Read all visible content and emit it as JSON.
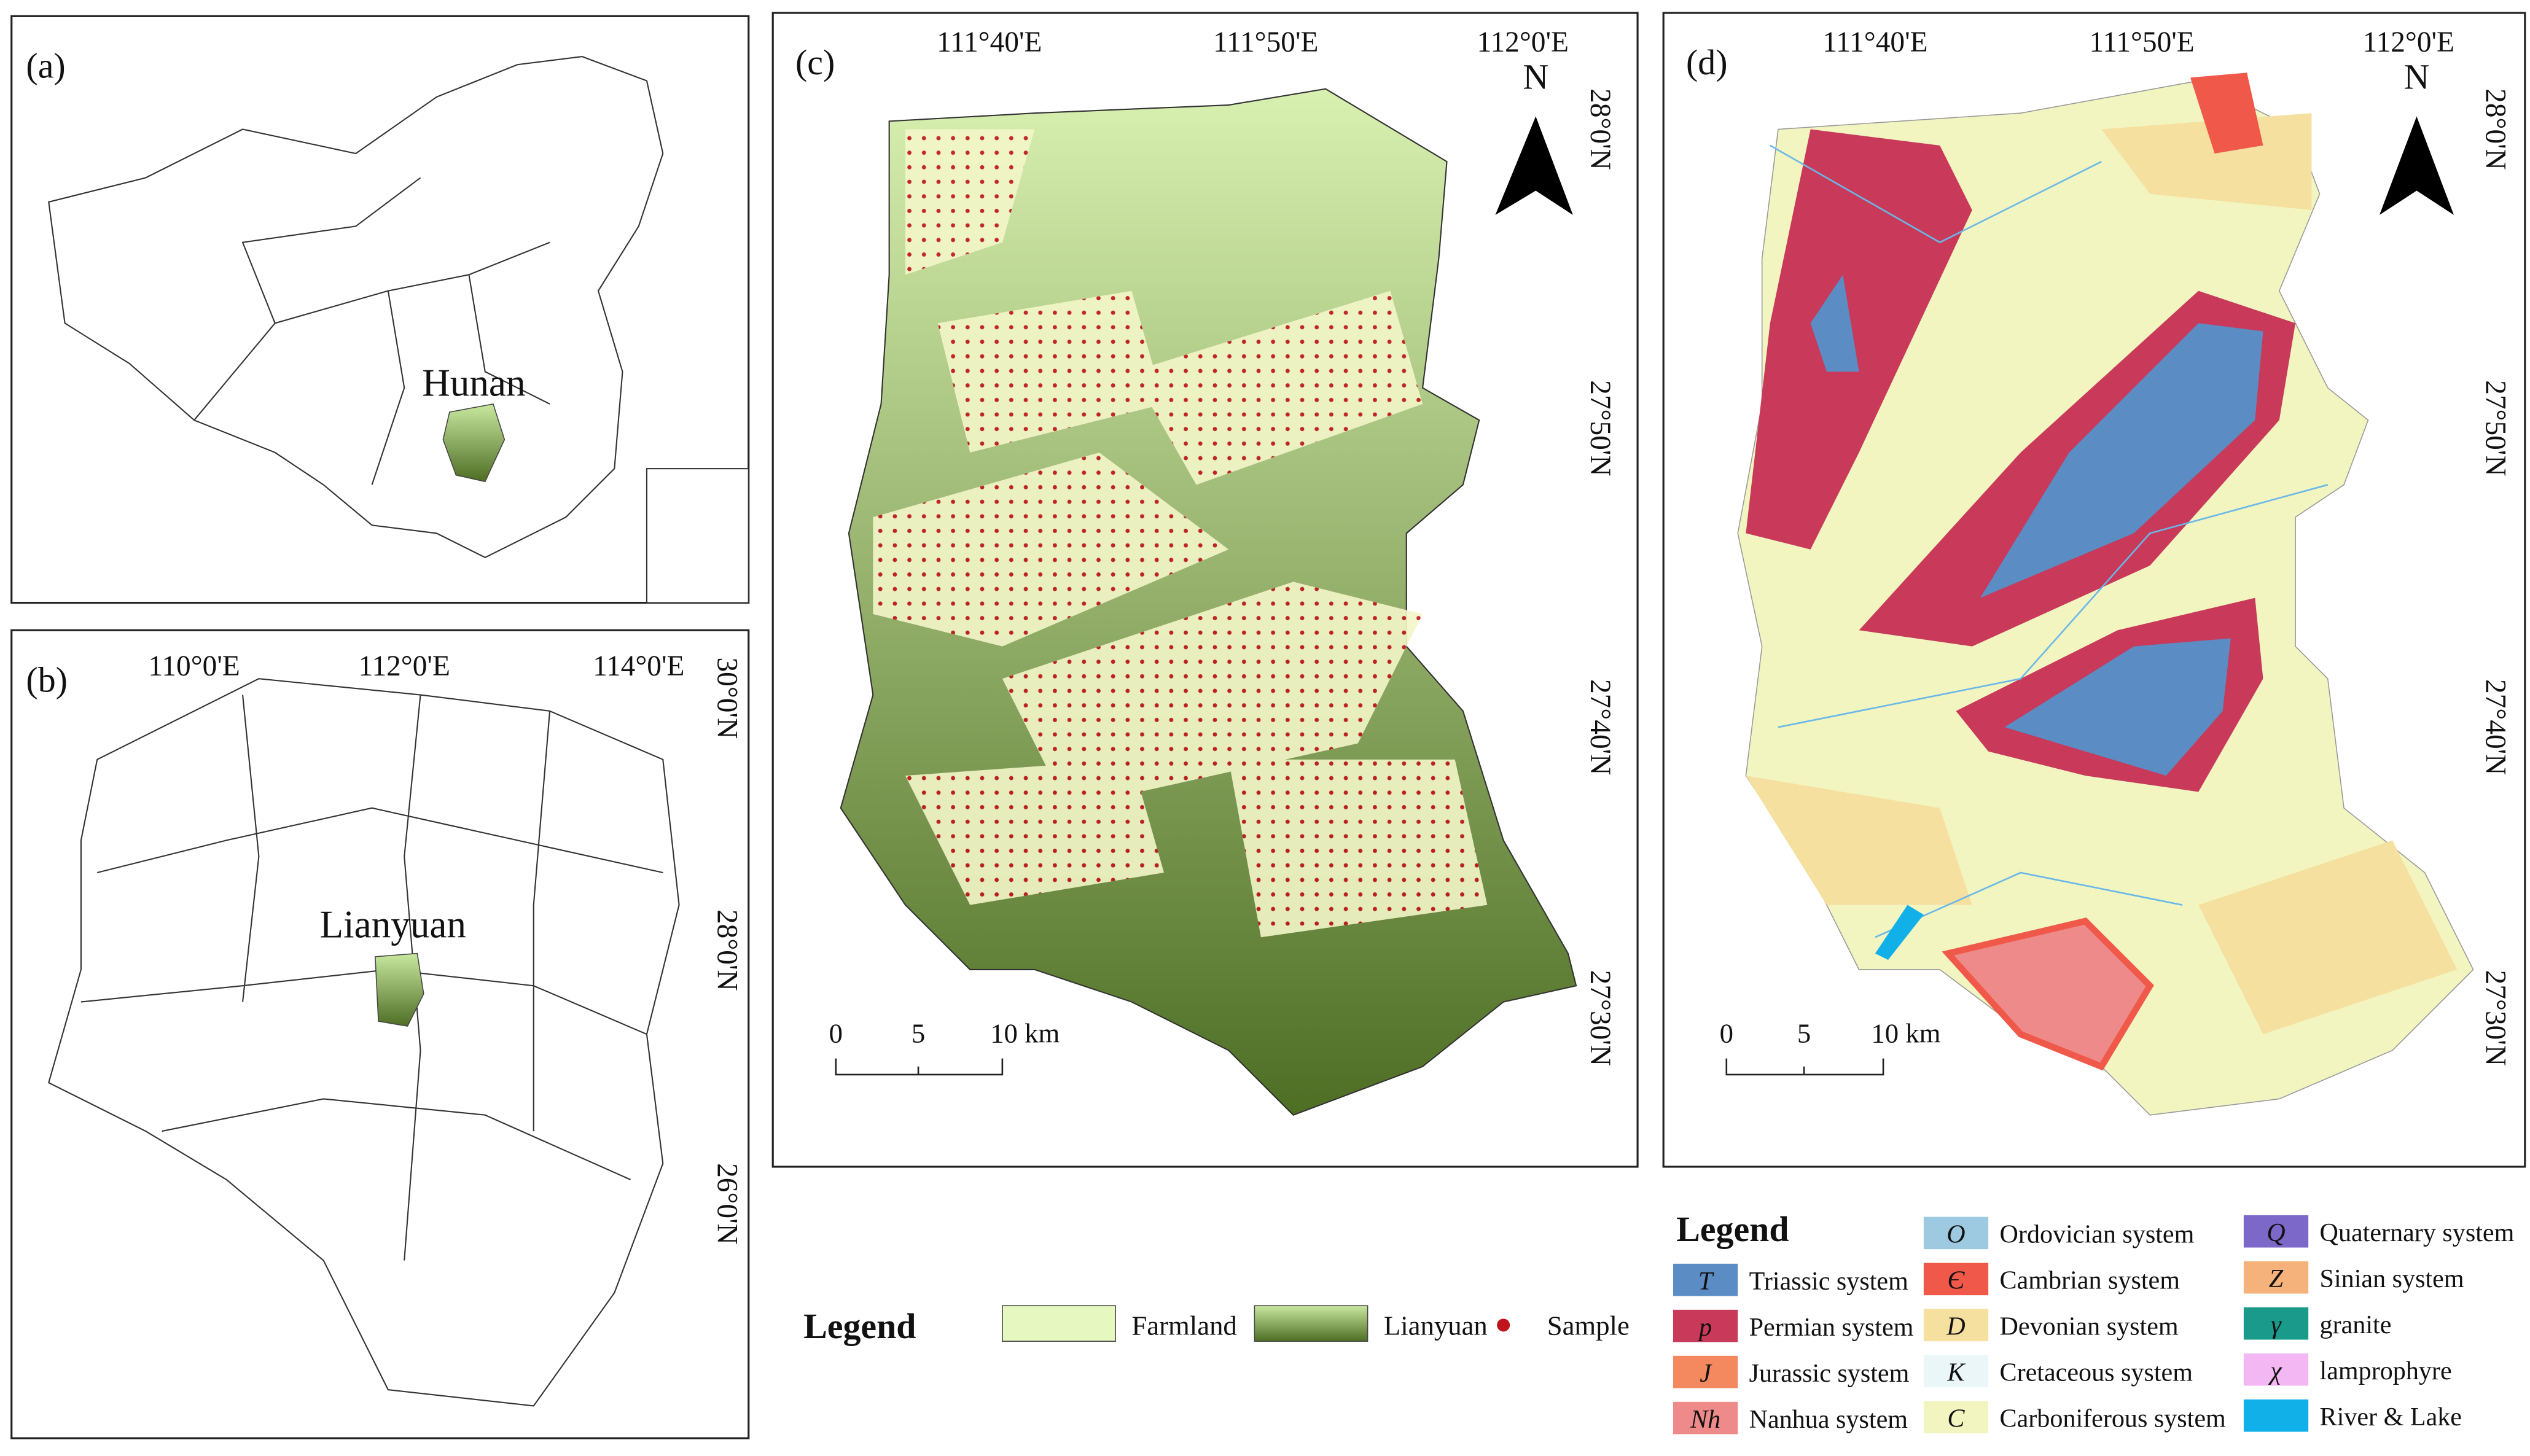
{
  "panel_a": {
    "label": "(a)",
    "place": "Hunan"
  },
  "panel_b": {
    "label": "(b)",
    "place": "Lianyuan",
    "lon_labels": [
      "110°0'E",
      "112°0'E",
      "114°0'E"
    ],
    "lat_labels": [
      "30°0'N",
      "28°0'N",
      "26°0'N"
    ]
  },
  "panel_c": {
    "label": "(c)",
    "lon_labels": [
      "111°40'E",
      "111°50'E",
      "112°0'E"
    ],
    "lat_labels": [
      "28°0'N",
      "27°50'N",
      "27°40'N",
      "27°30'N"
    ],
    "north": "N",
    "scale_labels": [
      "0",
      "5",
      "10 km"
    ]
  },
  "panel_d": {
    "label": "(d)",
    "lon_labels": [
      "111°40'E",
      "111°50'E",
      "112°0'E"
    ],
    "lat_labels": [
      "28°0'N",
      "27°50'N",
      "27°40'N",
      "27°30'N"
    ],
    "north": "N",
    "scale_labels": [
      "0",
      "5",
      "10 km"
    ]
  },
  "legend_c": {
    "title": "Legend",
    "items": [
      {
        "label": "Farmland",
        "color": "#e6f8c0"
      },
      {
        "label": "Lianyuan",
        "color": "#6a8a3a"
      },
      {
        "label": "Sample",
        "color": "#c0141c"
      }
    ]
  },
  "legend_d": {
    "title": "Legend",
    "items": [
      {
        "symbol": "T",
        "label": "Triassic system",
        "color": "#5b8cc4"
      },
      {
        "symbol": "p",
        "label": "Permian system",
        "color": "#c8395a"
      },
      {
        "symbol": "J",
        "label": "Jurassic system",
        "color": "#f4895f"
      },
      {
        "symbol": "Nh",
        "label": "Nanhua system",
        "color": "#ee8a8a"
      },
      {
        "symbol": "O",
        "label": "Ordovician system",
        "color": "#9ecae1"
      },
      {
        "symbol": "Є",
        "label": "Cambrian system",
        "color": "#f0584a"
      },
      {
        "symbol": "D",
        "label": "Devonian system",
        "color": "#f5e0a0"
      },
      {
        "symbol": "K",
        "label": "Cretaceous system",
        "color": "#eaf6f8"
      },
      {
        "symbol": "C",
        "label": "Carboniferous system",
        "color": "#f3f5c0"
      },
      {
        "symbol": "Q",
        "label": "Quaternary system",
        "color": "#7b68c8"
      },
      {
        "symbol": "Z",
        "label": "Sinian system",
        "color": "#f5b27a"
      },
      {
        "symbol": "γ",
        "label": "granite",
        "color": "#1a9a8a"
      },
      {
        "symbol": "χ",
        "label": "lamprophyre",
        "color": "#f3b8f3"
      },
      {
        "label": "River & Lake",
        "color": "#11b0e8"
      }
    ]
  }
}
